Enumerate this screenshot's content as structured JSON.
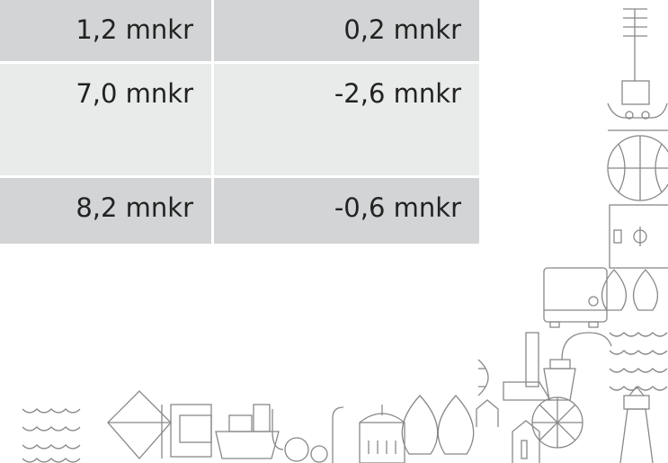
{
  "table": {
    "rows": [
      [
        "1,2 mnkr",
        "0,2 mnkr"
      ],
      [
        "7,0 mnkr",
        "-2,6 mnkr"
      ],
      [
        "8,2 mnkr",
        "-0,6 mnkr"
      ]
    ]
  }
}
